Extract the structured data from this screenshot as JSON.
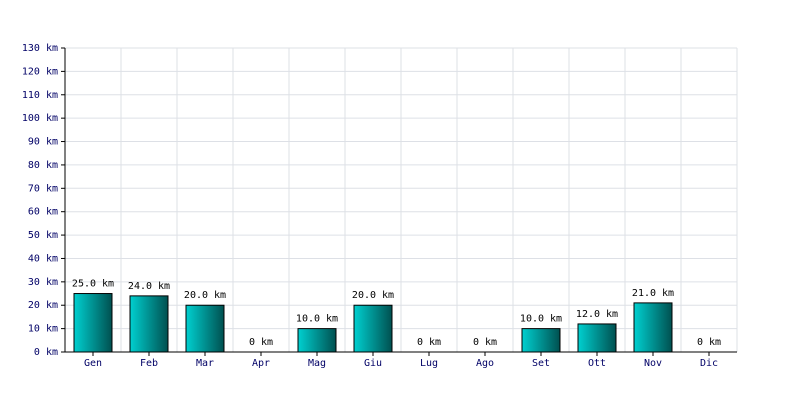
{
  "chart_data": {
    "type": "bar",
    "categories": [
      "Gen",
      "Feb",
      "Mar",
      "Apr",
      "Mag",
      "Giu",
      "Lug",
      "Ago",
      "Set",
      "Ott",
      "Nov",
      "Dic"
    ],
    "values": [
      25,
      24,
      20,
      0,
      10,
      20,
      0,
      0,
      10,
      12,
      21,
      0
    ],
    "value_labels": [
      "25.0 km",
      "24.0 km",
      "20.0 km",
      "0 km",
      "10.0 km",
      "20.0 km",
      "0 km",
      "0 km",
      "10.0 km",
      "12.0 km",
      "21.0 km",
      "0 km"
    ],
    "color": "#00d0d0",
    "ylim": [
      0,
      130
    ],
    "yticks": [
      {
        "value": 0,
        "label": "0 km"
      },
      {
        "value": 10,
        "label": "10 km"
      },
      {
        "value": 20,
        "label": "20 km"
      },
      {
        "value": 30,
        "label": "30 km"
      },
      {
        "value": 40,
        "label": "40 km"
      },
      {
        "value": 50,
        "label": "50 km"
      },
      {
        "value": 60,
        "label": "60 km"
      },
      {
        "value": 70,
        "label": "70 km"
      },
      {
        "value": 80,
        "label": "80 km"
      },
      {
        "value": 90,
        "label": "90 km"
      },
      {
        "value": 100,
        "label": "100 km"
      },
      {
        "value": 110,
        "label": "110 km"
      },
      {
        "value": 120,
        "label": "120 km"
      },
      {
        "value": 130,
        "label": "130 km"
      }
    ],
    "grid": true
  }
}
